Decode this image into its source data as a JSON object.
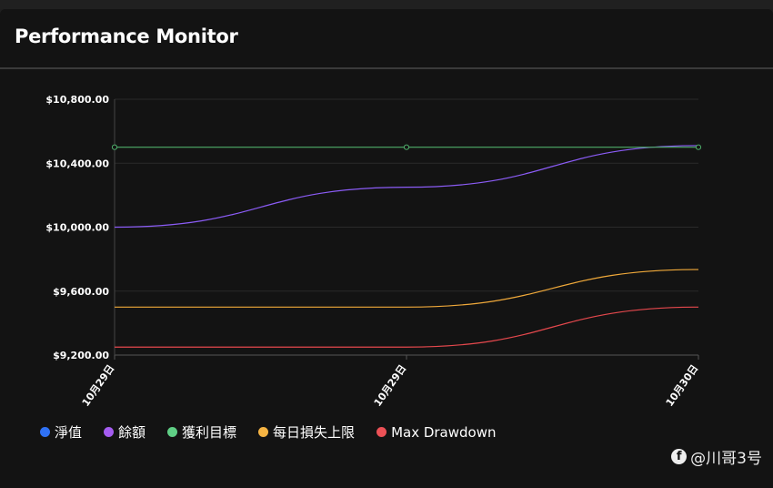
{
  "header": {
    "title": "Performance Monitor"
  },
  "chart_data": {
    "type": "line",
    "title": "Performance Monitor",
    "categories": [
      "10月29日",
      "10月29日",
      "10月30日"
    ],
    "ylim": [
      9200,
      10800
    ],
    "yticks": [
      9200,
      9600,
      10000,
      10400,
      10800
    ],
    "ytick_labels": [
      "$9,200.00",
      "$9,600.00",
      "$10,000.00",
      "$10,400.00",
      "$10,800.00"
    ],
    "grid": true,
    "legend_position": "bottom-left",
    "series": [
      {
        "name": "淨值",
        "color": "#2f6ef5",
        "values": [
          null,
          null,
          null
        ],
        "markers": false
      },
      {
        "name": "餘額",
        "color": "#8b5cf6",
        "values": [
          10000,
          10250,
          10510
        ],
        "markers": false
      },
      {
        "name": "獲利目標",
        "color": "#4ead6a",
        "values": [
          10500,
          10500,
          10500
        ],
        "markers": true
      },
      {
        "name": "每日損失上限",
        "color": "#f0a93a",
        "values": [
          9500,
          9500,
          9735
        ],
        "markers": false
      },
      {
        "name": "Max Drawdown",
        "color": "#e5484d",
        "values": [
          9250,
          9250,
          9500
        ],
        "markers": false
      }
    ]
  },
  "legend_colors": [
    "#2f72f5",
    "#a45cf0",
    "#5fcf85",
    "#f6b443",
    "#ec5156"
  ],
  "credit": {
    "icon": "facebook-icon",
    "text": "@川哥3号"
  }
}
